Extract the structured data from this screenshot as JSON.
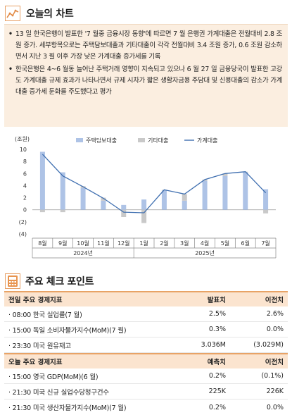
{
  "section1": {
    "title": "오늘의 차트"
  },
  "bullets": [
    "13 일 한국은행이 발표한 '7 월중 금융시장 동향'에 따르면 7 월 은행권 가계대출은 전월대비 2.8 조원 증가. 세부항목으로는 주택담보대출과 기타대출이 각각 전월대비 3.4 조원 증가, 0.6 조원 감소하면서 지난 3 월 이후 가장 낮은 가계대출 증가세를 기록",
    "한국은행은 4~6 월동 늘어난 주택거래 영향이 지속되고 있으나 6 월 27 일 금융당국이 발표한 고강도 가계대출 규제 효과가 나타나면서 규제 시차가 짧은 생활자금용 주담대 및 신용대출의 감소가 가계대출 증가세 둔화를 주도했다고 평가"
  ],
  "chart_data": {
    "type": "bar",
    "unit_label": "(조원)",
    "categories": [
      "8월",
      "9월",
      "10월",
      "11월",
      "12월",
      "1월",
      "2월",
      "3월",
      "4월",
      "5월",
      "6월",
      "7월"
    ],
    "year_labels": [
      "2024년",
      "2025년"
    ],
    "ylim": [
      -4,
      10
    ],
    "yticks": [
      "10",
      "8",
      "6",
      "4",
      "2",
      "0",
      "(2)",
      "(4)"
    ],
    "series": [
      {
        "name": "주택담보대출",
        "kind": "bar",
        "color": "#aec3e6",
        "values": [
          9.6,
          6.2,
          3.6,
          1.5,
          0.8,
          1.7,
          3.2,
          1.5,
          4.8,
          5.6,
          6.2,
          3.4
        ]
      },
      {
        "name": "기타대출",
        "kind": "bar",
        "color": "#c9c9c9",
        "values": [
          -0.4,
          -0.4,
          0.3,
          0.5,
          -1.2,
          -2.2,
          0.1,
          1.1,
          0.2,
          0.4,
          0.1,
          -0.6
        ]
      },
      {
        "name": "가계대출",
        "kind": "line",
        "color": "#3f6fb0",
        "values": [
          9.2,
          5.6,
          3.8,
          1.9,
          -0.4,
          -0.5,
          3.3,
          2.6,
          5.0,
          6.0,
          6.3,
          2.8
        ]
      }
    ]
  },
  "section2": {
    "title": "주요 체크 포인트"
  },
  "table_prev": {
    "headers": [
      "전일 주요 경제지표",
      "발표치",
      "이전치"
    ],
    "rows": [
      [
        "· 08:00  한국 실업률(7 월)",
        "2.5%",
        "2.6%"
      ],
      [
        "· 15:00  독일 소비자물가지수(MoM)(7 월)",
        "0.3%",
        "0.0%"
      ],
      [
        "· 23:30  미국 원유재고",
        "3.036M",
        "(3.029M)"
      ]
    ]
  },
  "table_today": {
    "headers": [
      "오늘 주요 경제지표",
      "예측치",
      "이전치"
    ],
    "rows": [
      [
        "· 15:00  영국 GDP(MoM)(6 월)",
        "0.2%",
        "(0.1%)"
      ],
      [
        "· 21:30  미국 신규 실업수당청구건수",
        "225K",
        "226K"
      ],
      [
        "· 21:30  미국 생산자물가지수(MoM)(7 월)",
        "0.2%",
        "0.0%"
      ]
    ]
  },
  "colors": {
    "accent": "#e8a366",
    "box_bg": "#fbeee0",
    "header_bg": "#fbe4cf"
  }
}
